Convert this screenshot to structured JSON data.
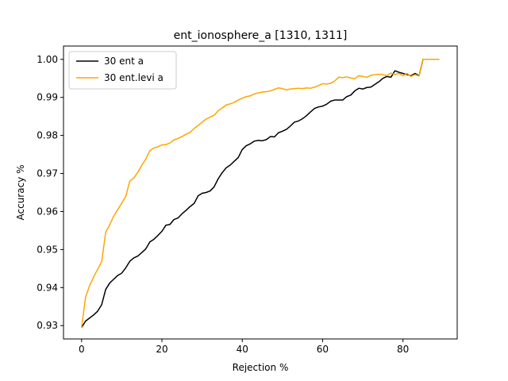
{
  "chart_data": {
    "type": "line",
    "title": "ent_ionosphere_a  [1310, 1311]",
    "xlabel": "Rejection %",
    "ylabel": "Accuracy %",
    "xlim": [
      -4.5,
      93.5
    ],
    "ylim": [
      0.9265,
      1.0035
    ],
    "xticks": [
      0,
      20,
      40,
      60,
      80
    ],
    "yticks": [
      0.93,
      0.94,
      0.95,
      0.96,
      0.97,
      0.98,
      0.99,
      1.0
    ],
    "ytick_labels": [
      "0.93",
      "0.94",
      "0.95",
      "0.96",
      "0.97",
      "0.98",
      "0.99",
      "1.00"
    ],
    "grid": false,
    "legend_position": "top-left",
    "series": [
      {
        "name": "30 ent a",
        "color": "#000000",
        "x": [
          0,
          1,
          2,
          3,
          4,
          5,
          6,
          7,
          8,
          9,
          10,
          11,
          12,
          13,
          14,
          15,
          16,
          17,
          18,
          19,
          20,
          21,
          22,
          23,
          24,
          25,
          26,
          27,
          28,
          29,
          30,
          31,
          32,
          33,
          34,
          35,
          36,
          37,
          38,
          39,
          40,
          41,
          42,
          43,
          44,
          45,
          46,
          47,
          48,
          49,
          50,
          51,
          52,
          53,
          54,
          55,
          56,
          57,
          58,
          59,
          60,
          61,
          62,
          63,
          64,
          65,
          66,
          67,
          68,
          69,
          70,
          71,
          72,
          73,
          74,
          75,
          76,
          77,
          78,
          79,
          80,
          81,
          82,
          83,
          84,
          85,
          86,
          87,
          88,
          89
        ],
        "y": [
          0.9295,
          0.9312,
          0.932,
          0.9328,
          0.9338,
          0.9355,
          0.9395,
          0.9412,
          0.9422,
          0.9432,
          0.9438,
          0.9452,
          0.9469,
          0.9478,
          0.9483,
          0.9492,
          0.9502,
          0.952,
          0.9527,
          0.9537,
          0.9548,
          0.9564,
          0.9566,
          0.9579,
          0.9583,
          0.9594,
          0.9603,
          0.9613,
          0.9621,
          0.9641,
          0.9648,
          0.965,
          0.9654,
          0.9665,
          0.9686,
          0.9702,
          0.9715,
          0.9722,
          0.9732,
          0.9742,
          0.9763,
          0.9773,
          0.9778,
          0.9785,
          0.9787,
          0.9786,
          0.9789,
          0.9797,
          0.9796,
          0.9807,
          0.9811,
          0.9816,
          0.9825,
          0.9835,
          0.9838,
          0.9844,
          0.9852,
          0.9862,
          0.9871,
          0.9875,
          0.9877,
          0.9882,
          0.989,
          0.9893,
          0.9893,
          0.9893,
          0.9902,
          0.9906,
          0.9917,
          0.9924,
          0.9922,
          0.9926,
          0.9927,
          0.9934,
          0.9941,
          0.995,
          0.9955,
          0.9953,
          0.997,
          0.9966,
          0.9963,
          0.996,
          0.9957,
          0.9963,
          0.9957,
          1.0,
          1.0,
          1.0,
          1.0,
          1.0
        ]
      },
      {
        "name": "30 ent.levi a",
        "color": "#ffa500",
        "x": [
          0,
          1,
          2,
          3,
          4,
          5,
          6,
          7,
          8,
          9,
          10,
          11,
          12,
          13,
          14,
          15,
          16,
          17,
          18,
          19,
          20,
          21,
          22,
          23,
          24,
          25,
          26,
          27,
          28,
          29,
          30,
          31,
          32,
          33,
          34,
          35,
          36,
          37,
          38,
          39,
          40,
          41,
          42,
          43,
          44,
          45,
          46,
          47,
          48,
          49,
          50,
          51,
          52,
          53,
          54,
          55,
          56,
          57,
          58,
          59,
          60,
          61,
          62,
          63,
          64,
          65,
          66,
          67,
          68,
          69,
          70,
          71,
          72,
          73,
          74,
          75,
          76,
          77,
          78,
          79,
          80,
          81,
          82,
          83,
          84,
          85,
          86,
          87,
          88,
          89
        ],
        "y": [
          0.9295,
          0.9375,
          0.9405,
          0.9428,
          0.9448,
          0.9468,
          0.9545,
          0.9565,
          0.9588,
          0.9605,
          0.9622,
          0.964,
          0.968,
          0.9688,
          0.9703,
          0.9722,
          0.9738,
          0.976,
          0.9767,
          0.977,
          0.9775,
          0.9776,
          0.978,
          0.9788,
          0.9792,
          0.9797,
          0.9803,
          0.9808,
          0.9818,
          0.9826,
          0.9835,
          0.9843,
          0.9848,
          0.9853,
          0.9865,
          0.9872,
          0.988,
          0.9883,
          0.9887,
          0.9893,
          0.9898,
          0.9902,
          0.9904,
          0.9909,
          0.9912,
          0.9914,
          0.9915,
          0.9917,
          0.9921,
          0.9925,
          0.9923,
          0.992,
          0.9922,
          0.9923,
          0.9924,
          0.9923,
          0.9925,
          0.9924,
          0.9927,
          0.9931,
          0.9936,
          0.9935,
          0.9937,
          0.9943,
          0.9953,
          0.9952,
          0.9954,
          0.9951,
          0.9949,
          0.9957,
          0.9955,
          0.9953,
          0.9958,
          0.996,
          0.9961,
          0.996,
          0.9957,
          0.9964,
          0.996,
          0.9963,
          0.9957,
          0.9963,
          0.9955,
          0.996,
          0.9956,
          1.0,
          1.0,
          1.0,
          1.0,
          1.0
        ]
      }
    ]
  }
}
